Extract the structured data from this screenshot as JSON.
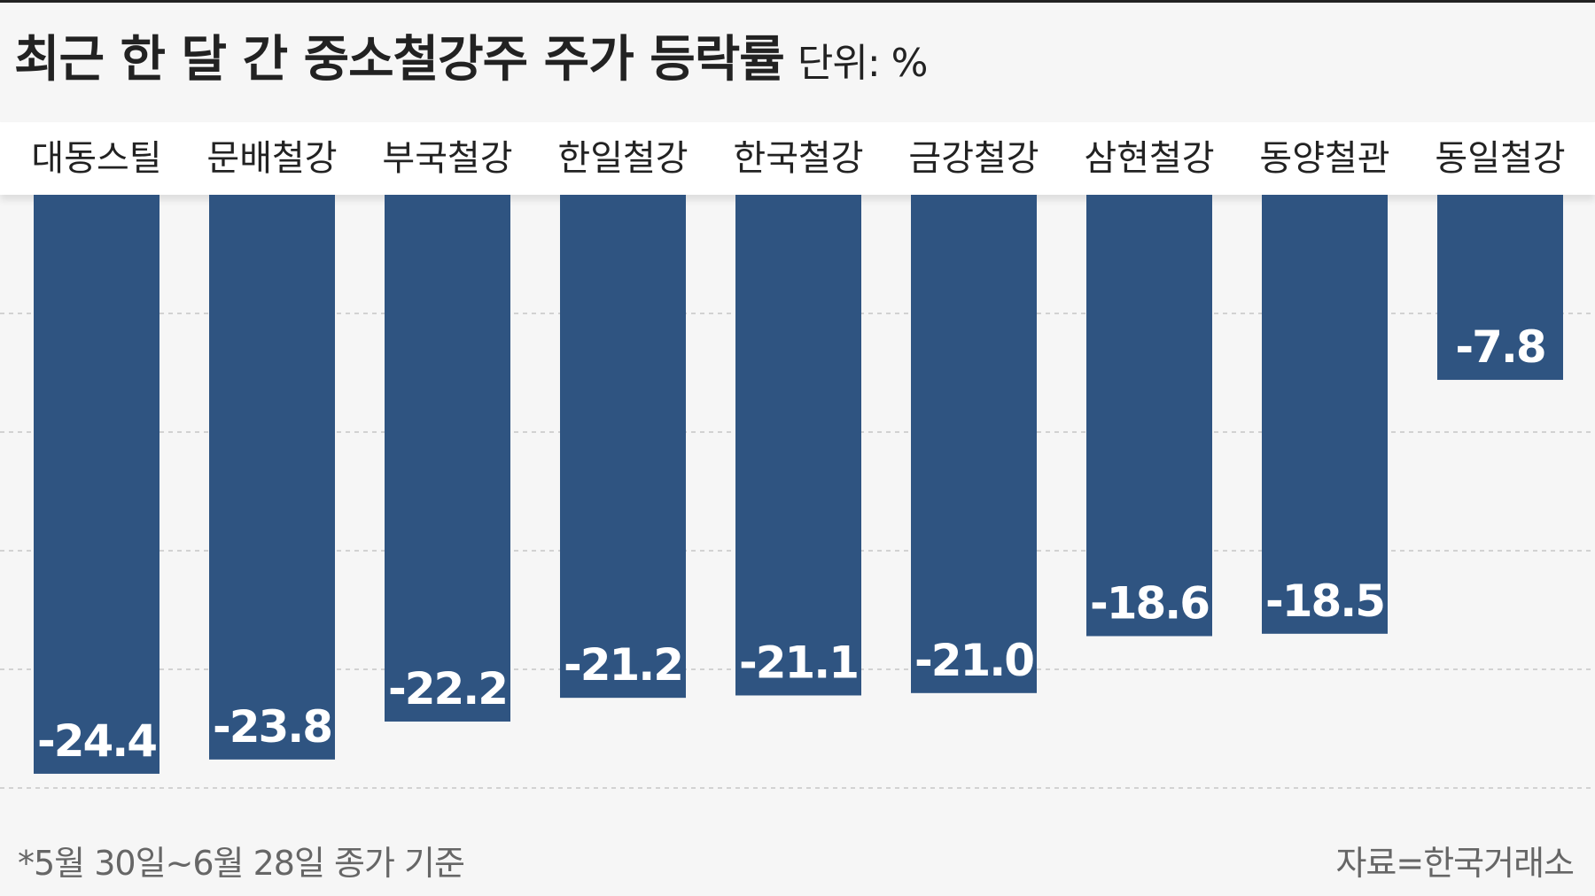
{
  "header": {
    "title": "최근 한 달 간 중소철강주 주가 등락률",
    "unit": "단위: %"
  },
  "chart_data": {
    "type": "bar",
    "title": "최근 한 달 간 중소철강주 주가 등락률",
    "unit": "%",
    "categories": [
      "대동스틸",
      "문배철강",
      "부국철강",
      "한일철강",
      "한국철강",
      "금강철강",
      "삼현철강",
      "동양철관",
      "동일철강"
    ],
    "values": [
      -24.4,
      -23.8,
      -22.2,
      -21.2,
      -21.1,
      -21.0,
      -18.6,
      -18.5,
      -7.8
    ],
    "value_labels": [
      "-24.4",
      "-23.8",
      "-22.2",
      "-21.2",
      "-21.1",
      "-21.0",
      "-18.6",
      "-18.5",
      "-7.8"
    ],
    "ylim": [
      -25,
      0
    ],
    "grid": true,
    "bar_color": "#2f5481",
    "label_color": "#ffffff"
  },
  "footer": {
    "note": "*5월 30일~6월 28일 종가 기준",
    "source": "자료=한국거래소"
  }
}
